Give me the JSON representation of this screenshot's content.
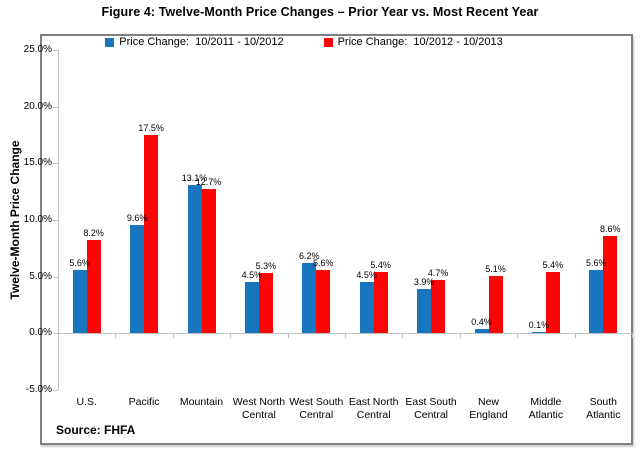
{
  "figure": {
    "title": "Figure 4: Twelve-Month Price Changes – Prior Year vs. Most Recent Year",
    "source": "Source: FHFA"
  },
  "colors": {
    "series_blue": "#1776BE",
    "series_red": "#FB0505",
    "frame_border": "#808080",
    "axis_line": "#BFBFBF",
    "text": "#000000"
  },
  "chart_data": {
    "type": "bar",
    "title": "Figure 4: Twelve-Month Price Changes – Prior Year vs. Most Recent Year",
    "categories": [
      "U.S.",
      "Pacific",
      "Mountain",
      "West North Central",
      "West South Central",
      "East North Central",
      "East South Central",
      "New England",
      "Middle Atlantic",
      "South Atlantic"
    ],
    "x_tick_labels": [
      "U.S.",
      "Pacific",
      "Mountain",
      "West North\nCentral",
      "West South\nCentral",
      "East North\nCentral",
      "East South\nCentral",
      "New\nEngland",
      "Middle\nAtlantic",
      "South\nAtlantic"
    ],
    "series": [
      {
        "name": "Price Change:  10/2011 - 10/2012",
        "color": "#1776BE",
        "values": [
          5.6,
          9.6,
          13.1,
          4.5,
          6.2,
          4.5,
          3.9,
          0.4,
          0.1,
          5.6
        ]
      },
      {
        "name": "Price Change:  10/2012 - 10/2013",
        "color": "#FB0505",
        "values": [
          8.2,
          17.5,
          12.7,
          5.3,
          5.6,
          5.4,
          4.7,
          5.1,
          5.4,
          8.6
        ]
      }
    ],
    "data_labels": [
      "5.6%",
      "8.2%",
      "9.6%",
      "17.5%",
      "13.1%",
      "12.7%",
      "4.5%",
      "5.3%",
      "6.2%",
      "5.6%",
      "4.5%",
      "5.4%",
      "3.9%",
      "4.7%",
      "0.4%",
      "5.1%",
      "0.1%",
      "5.4%",
      "5.6%",
      "8.6%"
    ],
    "ylabel": "Twelve-Month Price Change",
    "xlabel": "",
    "ylim": [
      -5,
      25
    ],
    "ytick_interval": 5,
    "y_tick_labels": [
      "25.0%",
      "20.0%",
      "15.0%",
      "10.0%",
      "5.0%",
      "0.0%",
      "-5.0%"
    ],
    "grid": false,
    "legend_position": "top-center",
    "source": "Source: FHFA"
  }
}
